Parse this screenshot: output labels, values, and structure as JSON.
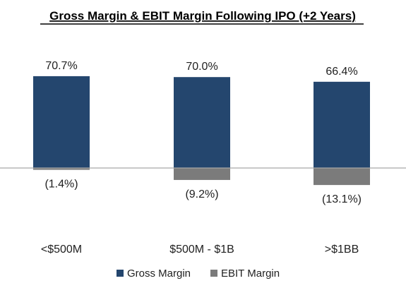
{
  "chart_data": {
    "type": "bar",
    "title": "Gross Margin & EBIT Margin Following IPO (+2 Years)",
    "categories": [
      "<$500M",
      "$500M - $1B",
      ">$1BB"
    ],
    "series": [
      {
        "name": "Gross Margin",
        "values": [
          70.7,
          70.0,
          66.4
        ],
        "labels": [
          "70.7%",
          "70.0%",
          "66.4%"
        ],
        "color": "#24466e"
      },
      {
        "name": "EBIT Margin",
        "values": [
          -1.4,
          -9.2,
          -13.1
        ],
        "labels": [
          "(1.4%)",
          "(9.2%)",
          "(13.1%)"
        ],
        "color": "#7b7b7b"
      }
    ],
    "ylim": [
      -20,
      90
    ],
    "grid": false,
    "legend_position": "bottom",
    "axis_color": "#a6a6a6"
  }
}
